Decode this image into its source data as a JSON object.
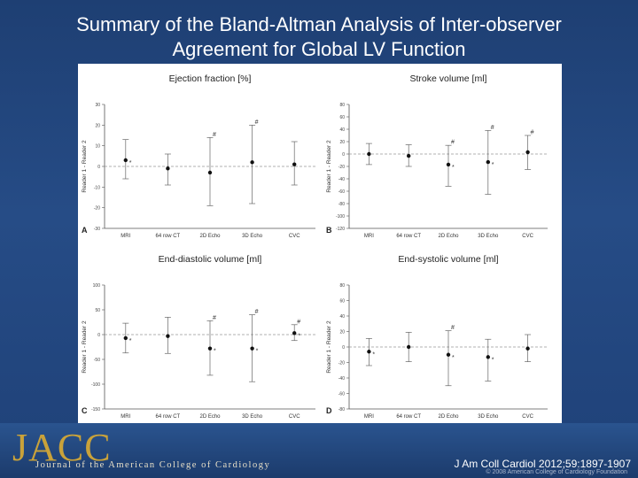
{
  "slide": {
    "title_line1": "Summary of the Bland-Altman Analysis of Inter-observer",
    "title_line2": "Agreement for Global LV Function",
    "logo": "JACC",
    "journal_name": "Journal of the American College of Cardiology",
    "citation": "J Am Coll Cardiol 2012;59:1897-1907",
    "copyright": "© 2008 American College of Cardiology Foundation"
  },
  "chart_data": [
    {
      "type": "scatter",
      "panel_letter": "A",
      "title": "Ejection fraction [%]",
      "ylabel": "Reader 1 - Reader 2",
      "ylim": [
        -30,
        30
      ],
      "yticks": [
        30,
        20,
        10,
        0,
        -10,
        -20,
        -30
      ],
      "categories": [
        "MRI",
        "64 row CT",
        "2D Echo",
        "3D Echo",
        "CVC"
      ],
      "mean": [
        3,
        -1,
        -3,
        2,
        1
      ],
      "upper": [
        13,
        6,
        14,
        20,
        12
      ],
      "lower": [
        -6,
        -9,
        -19,
        -18,
        -9
      ],
      "marks": [
        "*",
        "",
        "#",
        "#",
        ""
      ]
    },
    {
      "type": "scatter",
      "panel_letter": "B",
      "title": "Stroke volume [ml]",
      "ylabel": "Reader 1 - Reader 2",
      "ylim": [
        -120,
        80
      ],
      "yticks": [
        80,
        60,
        40,
        20,
        0,
        -20,
        -40,
        -60,
        -80,
        -100,
        -120
      ],
      "categories": [
        "MRI",
        "64 row CT",
        "2D Echo",
        "3D Echo",
        "CVC"
      ],
      "mean": [
        0,
        -3,
        -17,
        -13,
        3
      ],
      "upper": [
        17,
        15,
        14,
        38,
        30
      ],
      "lower": [
        -17,
        -20,
        -52,
        -65,
        -25
      ],
      "marks": [
        "",
        "",
        "#*",
        "#*",
        "#"
      ]
    },
    {
      "type": "scatter",
      "panel_letter": "C",
      "title": "End-diastolic volume [ml]",
      "ylabel": "Reader 1 - Reader 2",
      "ylim": [
        -150,
        100
      ],
      "yticks": [
        100,
        50,
        0,
        -50,
        -100,
        -150
      ],
      "categories": [
        "MRI",
        "64 row CT",
        "2D Echo",
        "3D Echo",
        "CVC"
      ],
      "mean": [
        -7,
        -3,
        -28,
        -28,
        3
      ],
      "upper": [
        23,
        35,
        28,
        40,
        20
      ],
      "lower": [
        -37,
        -38,
        -82,
        -95,
        -12
      ],
      "marks": [
        "*",
        "",
        "#*",
        "#*",
        "#*"
      ]
    },
    {
      "type": "scatter",
      "panel_letter": "D",
      "title": "End-systolic volume [ml]",
      "ylabel": "Reader 1 - Reader 2",
      "ylim": [
        -80,
        80
      ],
      "yticks": [
        80,
        60,
        40,
        20,
        0,
        -20,
        -40,
        -60,
        -80
      ],
      "categories": [
        "MRI",
        "64 row CT",
        "2D Echo",
        "3D Echo",
        "CVC"
      ],
      "mean": [
        -6,
        0,
        -10,
        -13,
        -2
      ],
      "upper": [
        11,
        19,
        21,
        10,
        16
      ],
      "lower": [
        -24,
        -19,
        -50,
        -44,
        -19
      ],
      "marks": [
        "*",
        "",
        "#*",
        "*",
        ""
      ]
    }
  ]
}
